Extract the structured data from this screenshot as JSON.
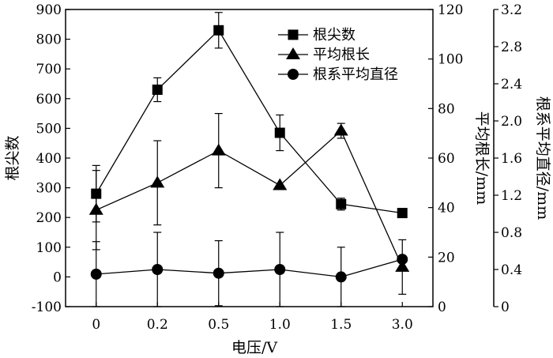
{
  "chart_data": {
    "type": "line",
    "categories": [
      "0",
      "0.2",
      "0.5",
      "1.0",
      "1.5",
      "3.0"
    ],
    "xlabel": "电压/V",
    "axes": {
      "left": {
        "label": "根尖数",
        "ylim": [
          -100,
          900
        ],
        "ticks": [
          "-100",
          "0",
          "100",
          "200",
          "300",
          "400",
          "500",
          "600",
          "700",
          "800",
          "900"
        ]
      },
      "right1": {
        "label": "平均根长/mm",
        "ylim": [
          0,
          120
        ],
        "ticks": [
          "0",
          "20",
          "40",
          "60",
          "80",
          "100",
          "120"
        ]
      },
      "right2": {
        "label": "根系平均直径/mm",
        "ylim": [
          0,
          3.2
        ],
        "ticks": [
          "0",
          "0.4",
          "0.8",
          "1.2",
          "1.6",
          "2.0",
          "2.4",
          "2.8",
          "3.2"
        ]
      }
    },
    "series": [
      {
        "name": "根尖数",
        "axis": "left",
        "marker": "square",
        "values": [
          280,
          630,
          830,
          485,
          245,
          215
        ],
        "errors": [
          95,
          40,
          60,
          60,
          20,
          null
        ]
      },
      {
        "name": "平均根长",
        "axis": "right1",
        "marker": "triangle",
        "values": [
          39,
          50,
          63,
          49,
          71,
          16
        ],
        "errors": [
          16,
          17,
          15,
          null,
          3,
          11
        ]
      },
      {
        "name": "根系平均直径",
        "axis": "right2",
        "marker": "circle",
        "values": [
          0.35,
          0.4,
          0.36,
          0.4,
          0.32,
          0.51
        ],
        "errors": [
          0.35,
          0.4,
          0.35,
          0.4,
          0.32,
          null
        ]
      }
    ],
    "legend": {
      "position": "top-right",
      "entries": [
        "根尖数",
        "平均根长",
        "根系平均直径"
      ]
    },
    "grid": false
  }
}
